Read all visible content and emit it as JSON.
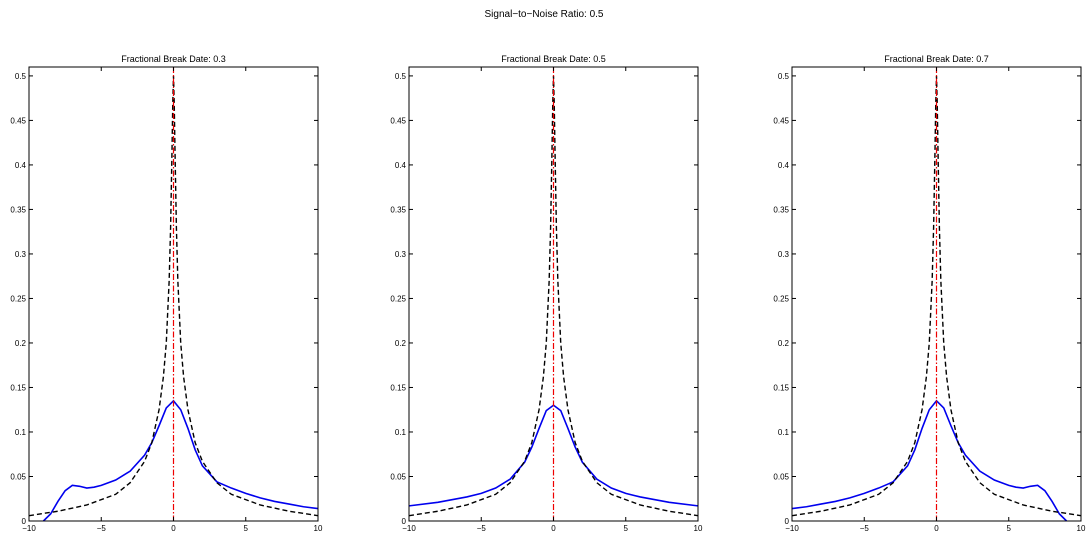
{
  "chart_data": {
    "title": "Signal−to−Noise Ratio: 0.5",
    "panels": [
      {
        "type": "line",
        "title": "Fractional Break Date: 0.3",
        "xlim": [
          -10,
          10
        ],
        "ylim": [
          0,
          0.51
        ],
        "xticks": [
          -10,
          -5,
          0,
          5,
          10
        ],
        "xtick_labels": [
          "−10",
          "−5",
          "0",
          "5",
          "10"
        ],
        "yticks": [
          0,
          0.05,
          0.1,
          0.15,
          0.2,
          0.25,
          0.3,
          0.35,
          0.4,
          0.45,
          0.5
        ],
        "ytick_labels": [
          "0",
          "0.05",
          "0.1",
          "0.15",
          "0.2",
          "0.25",
          "0.3",
          "0.35",
          "0.4",
          "0.45",
          "0.5"
        ],
        "grid": false,
        "vline_x": 0,
        "series": [
          {
            "style": "solid",
            "color": "#0000ee",
            "x": [
              -9.0,
              -8.5,
              -8.0,
              -7.5,
              -7.0,
              -6.5,
              -6.0,
              -5.5,
              -5.0,
              -4.0,
              -3.0,
              -2.0,
              -1.5,
              -1.0,
              -0.5,
              0.0,
              0.5,
              1.0,
              1.5,
              2.0,
              3.0,
              4.0,
              5.0,
              6.0,
              7.0,
              8.0,
              9.0,
              10.0
            ],
            "y": [
              0.0,
              0.008,
              0.022,
              0.034,
              0.04,
              0.039,
              0.037,
              0.038,
              0.04,
              0.046,
              0.056,
              0.074,
              0.088,
              0.107,
              0.127,
              0.135,
              0.125,
              0.104,
              0.08,
              0.062,
              0.044,
              0.037,
              0.031,
              0.026,
              0.022,
              0.019,
              0.016,
              0.014
            ]
          },
          {
            "style": "dashed",
            "color": "#000000",
            "x": [
              -10.0,
              -8.0,
              -6.0,
              -4.0,
              -3.0,
              -2.0,
              -1.5,
              -1.0,
              -0.7,
              -0.5,
              -0.3,
              -0.2,
              -0.1,
              -0.05,
              0.0,
              0.05,
              0.1,
              0.2,
              0.3,
              0.5,
              0.7,
              1.0,
              1.5,
              2.0,
              3.0,
              4.0,
              6.0,
              8.0,
              10.0
            ],
            "y": [
              0.006,
              0.011,
              0.018,
              0.03,
              0.043,
              0.067,
              0.088,
              0.125,
              0.162,
              0.2,
              0.27,
              0.33,
              0.42,
              0.47,
              0.5,
              0.47,
              0.42,
              0.33,
              0.27,
              0.2,
              0.162,
              0.125,
              0.088,
              0.067,
              0.043,
              0.03,
              0.018,
              0.011,
              0.006
            ]
          }
        ]
      },
      {
        "type": "line",
        "title": "Fractional Break Date: 0.5",
        "xlim": [
          -10,
          10
        ],
        "ylim": [
          0,
          0.51
        ],
        "xticks": [
          -10,
          -5,
          0,
          5,
          10
        ],
        "xtick_labels": [
          "−10",
          "−5",
          "0",
          "5",
          "10"
        ],
        "yticks": [
          0,
          0.05,
          0.1,
          0.15,
          0.2,
          0.25,
          0.3,
          0.35,
          0.4,
          0.45,
          0.5
        ],
        "ytick_labels": [
          "0",
          "0.05",
          "0.1",
          "0.15",
          "0.2",
          "0.25",
          "0.3",
          "0.35",
          "0.4",
          "0.45",
          "0.5"
        ],
        "grid": false,
        "vline_x": 0,
        "series": [
          {
            "style": "solid",
            "color": "#0000ee",
            "x": [
              -10.0,
              -8.0,
              -6.0,
              -5.0,
              -4.0,
              -3.0,
              -2.0,
              -1.5,
              -1.0,
              -0.5,
              0.0,
              0.5,
              1.0,
              1.5,
              2.0,
              3.0,
              4.0,
              5.0,
              6.0,
              8.0,
              10.0
            ],
            "y": [
              0.017,
              0.021,
              0.027,
              0.031,
              0.037,
              0.047,
              0.066,
              0.083,
              0.104,
              0.124,
              0.13,
              0.124,
              0.104,
              0.083,
              0.066,
              0.047,
              0.037,
              0.031,
              0.027,
              0.021,
              0.017
            ]
          },
          {
            "style": "dashed",
            "color": "#000000",
            "x": [
              -10.0,
              -8.0,
              -6.0,
              -4.0,
              -3.0,
              -2.0,
              -1.5,
              -1.0,
              -0.7,
              -0.5,
              -0.3,
              -0.2,
              -0.1,
              -0.05,
              0.0,
              0.05,
              0.1,
              0.2,
              0.3,
              0.5,
              0.7,
              1.0,
              1.5,
              2.0,
              3.0,
              4.0,
              6.0,
              8.0,
              10.0
            ],
            "y": [
              0.006,
              0.011,
              0.018,
              0.03,
              0.043,
              0.067,
              0.088,
              0.125,
              0.162,
              0.2,
              0.27,
              0.33,
              0.42,
              0.47,
              0.5,
              0.47,
              0.42,
              0.33,
              0.27,
              0.2,
              0.162,
              0.125,
              0.088,
              0.067,
              0.043,
              0.03,
              0.018,
              0.011,
              0.006
            ]
          }
        ]
      },
      {
        "type": "line",
        "title": "Fractional Break Date: 0.7",
        "xlim": [
          -10,
          10
        ],
        "ylim": [
          0,
          0.51
        ],
        "xticks": [
          -10,
          -5,
          0,
          5,
          10
        ],
        "xtick_labels": [
          "−10",
          "−5",
          "0",
          "5",
          "10"
        ],
        "yticks": [
          0,
          0.05,
          0.1,
          0.15,
          0.2,
          0.25,
          0.3,
          0.35,
          0.4,
          0.45,
          0.5
        ],
        "ytick_labels": [
          "0",
          "0.05",
          "0.1",
          "0.15",
          "0.2",
          "0.25",
          "0.3",
          "0.35",
          "0.4",
          "0.45",
          "0.5"
        ],
        "grid": false,
        "vline_x": 0,
        "series": [
          {
            "style": "solid",
            "color": "#0000ee",
            "x": [
              -10.0,
              -9.0,
              -8.0,
              -7.0,
              -6.0,
              -5.0,
              -4.0,
              -3.0,
              -2.0,
              -1.5,
              -1.0,
              -0.5,
              0.0,
              0.5,
              1.0,
              1.5,
              2.0,
              3.0,
              4.0,
              5.0,
              5.5,
              6.0,
              6.5,
              7.0,
              7.5,
              8.0,
              8.5,
              9.0
            ],
            "y": [
              0.014,
              0.016,
              0.019,
              0.022,
              0.026,
              0.031,
              0.037,
              0.044,
              0.062,
              0.08,
              0.104,
              0.125,
              0.135,
              0.127,
              0.107,
              0.088,
              0.074,
              0.056,
              0.046,
              0.04,
              0.038,
              0.037,
              0.039,
              0.04,
              0.034,
              0.022,
              0.008,
              0.0
            ]
          },
          {
            "style": "dashed",
            "color": "#000000",
            "x": [
              -10.0,
              -8.0,
              -6.0,
              -4.0,
              -3.0,
              -2.0,
              -1.5,
              -1.0,
              -0.7,
              -0.5,
              -0.3,
              -0.2,
              -0.1,
              -0.05,
              0.0,
              0.05,
              0.1,
              0.2,
              0.3,
              0.5,
              0.7,
              1.0,
              1.5,
              2.0,
              3.0,
              4.0,
              6.0,
              8.0,
              10.0
            ],
            "y": [
              0.006,
              0.011,
              0.018,
              0.03,
              0.043,
              0.067,
              0.088,
              0.125,
              0.162,
              0.2,
              0.27,
              0.33,
              0.42,
              0.47,
              0.5,
              0.47,
              0.42,
              0.33,
              0.27,
              0.2,
              0.162,
              0.125,
              0.088,
              0.067,
              0.043,
              0.03,
              0.018,
              0.011,
              0.006
            ]
          }
        ]
      }
    ]
  }
}
